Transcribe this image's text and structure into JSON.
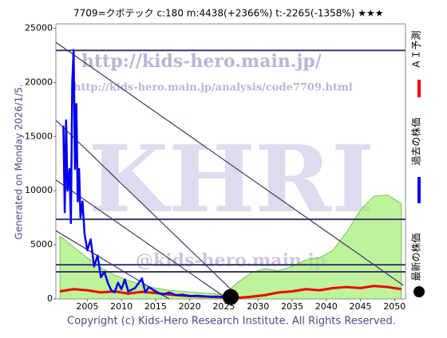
{
  "chart_data": {
    "type": "line",
    "title": "7709=クボテック    c:180  m:4438(+2366%)  t:-2265(-1358%)  ★★★",
    "side_text": "Generated on Monday 2026/1/5.",
    "footer": "Copyright (c) Kids-Hero Research Institute. All Rights Reserved.",
    "watermarks": [
      "http://kids-hero.main.jp/",
      "http://kids-hero.main.jp/analysis/code7709.html",
      "KHRI",
      "@kids-hero.main.jp"
    ],
    "xlim": [
      2000.4,
      2051.6
    ],
    "ylim": [
      0,
      25400
    ],
    "xticks": [
      2005,
      2010,
      2015,
      2020,
      2025,
      2030,
      2035,
      2040,
      2045,
      2050
    ],
    "yticks": [
      0,
      5000,
      10000,
      15000,
      20000,
      25000
    ],
    "band": {
      "color": "#a8ee7a",
      "x": [
        2001,
        2003,
        2005,
        2007,
        2009,
        2011,
        2013,
        2015,
        2017,
        2019,
        2021,
        2023,
        2025,
        2027,
        2029,
        2031,
        2033,
        2035,
        2037,
        2039,
        2041,
        2043,
        2045,
        2047,
        2049,
        2051
      ],
      "values": [
        5800,
        4800,
        3800,
        2900,
        2200,
        1700,
        1300,
        1000,
        800,
        700,
        600,
        500,
        400,
        1500,
        2400,
        2800,
        2600,
        3000,
        3600,
        3800,
        4500,
        6200,
        8200,
        9500,
        9600,
        8800
      ]
    },
    "hlines": [
      22950,
      7350,
      3160,
      2500
    ],
    "trend_lines": [
      {
        "x": [
          2000.4,
          2051.3
        ],
        "values": [
          23700,
          1250
        ]
      },
      {
        "x": [
          2000.4,
          2027.5
        ],
        "values": [
          16500,
          0
        ]
      },
      {
        "x": [
          2000.4,
          2025.5
        ],
        "values": [
          11000,
          0
        ]
      },
      {
        "x": [
          2000.4,
          2017
        ],
        "values": [
          6300,
          0
        ]
      }
    ],
    "series": [
      {
        "name": "ＡＩ予測",
        "color": "#ee0000",
        "x": [
          2001,
          2003,
          2005,
          2007,
          2009,
          2011,
          2013,
          2015,
          2017,
          2019,
          2021,
          2023,
          2025,
          2027,
          2029,
          2031,
          2033,
          2035,
          2037,
          2039,
          2041,
          2043,
          2045,
          2047,
          2049,
          2051
        ],
        "values": [
          700,
          900,
          800,
          600,
          700,
          500,
          650,
          550,
          400,
          300,
          250,
          200,
          150,
          100,
          200,
          350,
          600,
          700,
          900,
          800,
          1000,
          1100,
          1000,
          1200,
          1100,
          900
        ]
      },
      {
        "name": "過去の株価",
        "color": "#0000ee",
        "x": [
          2001.5,
          2001.7,
          2001.9,
          2002.1,
          2002.4,
          2002.6,
          2002.8,
          2003.0,
          2003.2,
          2003.4,
          2003.6,
          2003.8,
          2004.0,
          2004.3,
          2004.6,
          2005,
          2005.5,
          2006,
          2006.5,
          2007,
          2007.5,
          2008,
          2008.5,
          2009,
          2009.5,
          2010,
          2010.5,
          2011,
          2012,
          2013,
          2013.5,
          2014,
          2015,
          2016,
          2017,
          2018,
          2019,
          2020,
          2021,
          2022,
          2023,
          2024,
          2025
        ],
        "values": [
          16000,
          8000,
          16500,
          10000,
          12000,
          7000,
          20000,
          23000,
          12000,
          18000,
          9000,
          12000,
          7500,
          9000,
          6000,
          4500,
          5500,
          3000,
          4000,
          2000,
          2500,
          1500,
          800,
          600,
          1500,
          900,
          1800,
          700,
          1000,
          1900,
          600,
          1100,
          700,
          400,
          600,
          350,
          400,
          250,
          300,
          250,
          200,
          220,
          180
        ]
      },
      {
        "name": "最新の株価",
        "color": "#000000",
        "x": [
          2026
        ],
        "values": [
          180
        ]
      }
    ]
  }
}
